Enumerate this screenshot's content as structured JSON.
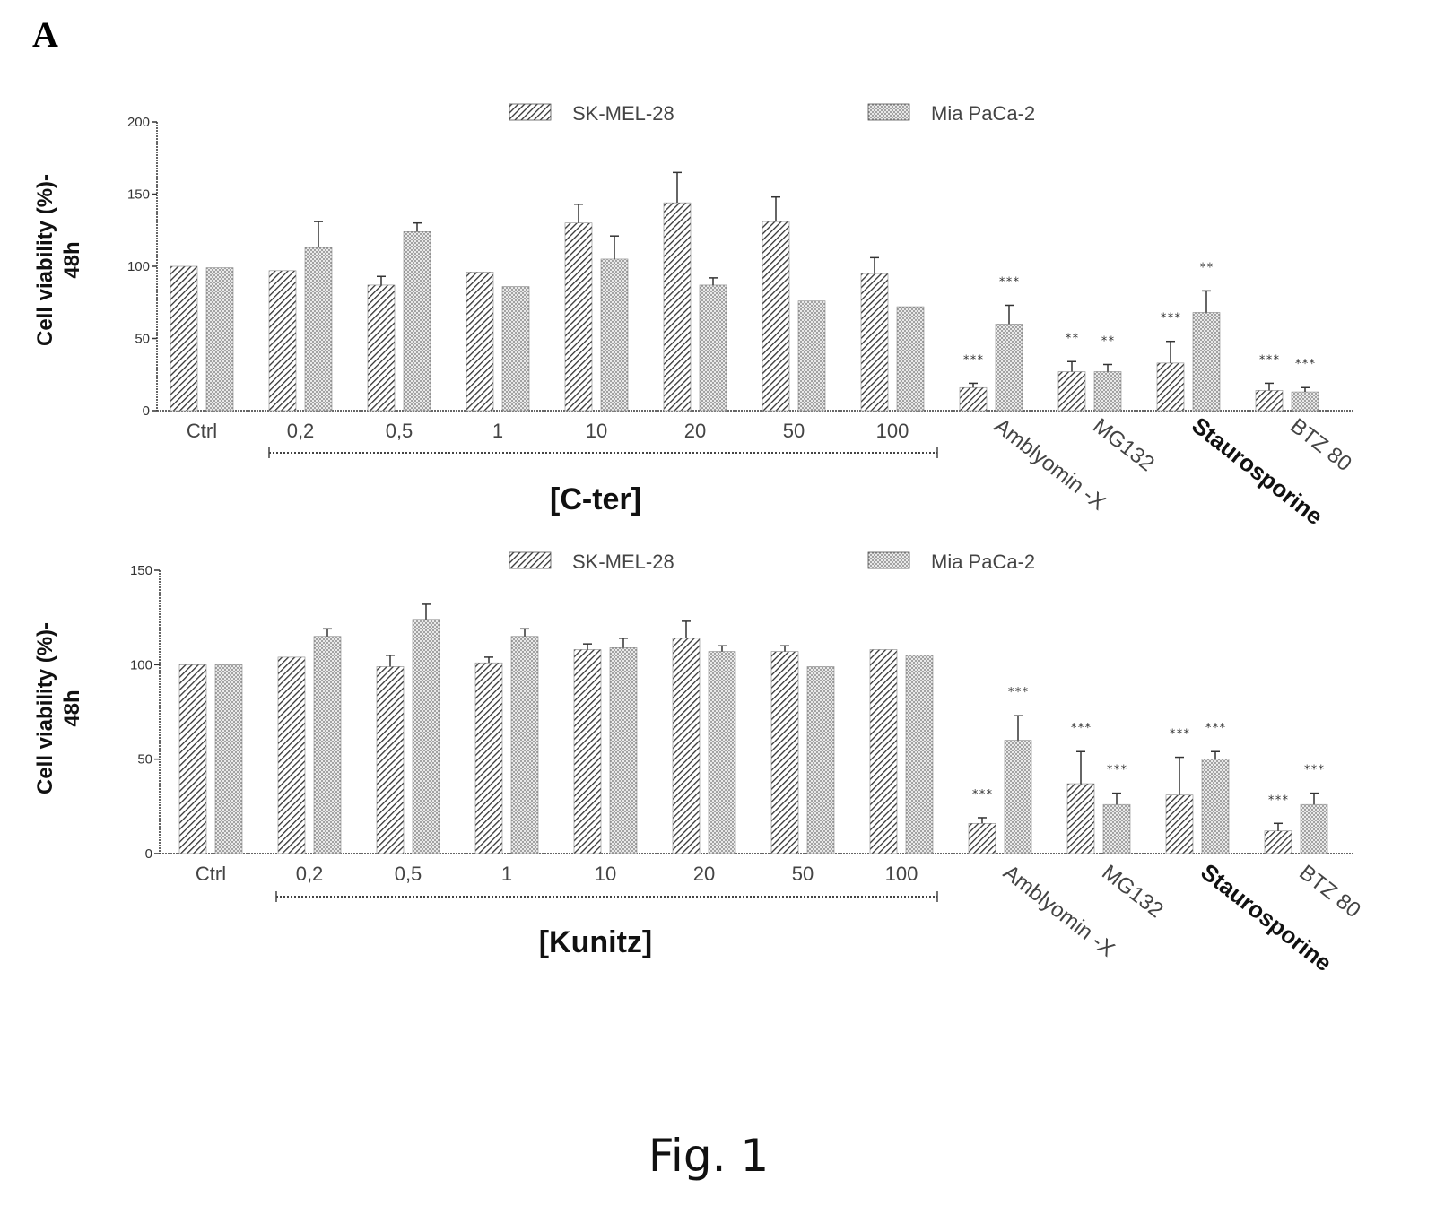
{
  "panel_letter": "A",
  "caption": "Fig. 1",
  "chart_data": [
    {
      "type": "bar",
      "ylabel": "Cell viability (%)-\n48h",
      "ylim": [
        0,
        200
      ],
      "yticks": [
        "0",
        "50",
        "100",
        "150",
        "200"
      ],
      "group_label": "[C-ter]",
      "categories": [
        "Ctrl",
        "0,2",
        "0,5",
        "1",
        "10",
        "20",
        "50",
        "100",
        "Amblyomin -X",
        "MG132",
        "Staurosporine",
        "BTZ 80"
      ],
      "bold_categories": [
        "Staurosporine"
      ],
      "legend": [
        "SK-MEL-28",
        "Mia PaCa-2"
      ],
      "series": [
        {
          "name": "SK-MEL-28",
          "values": [
            100,
            97,
            87,
            96,
            130,
            144,
            131,
            95,
            16,
            27,
            33,
            14
          ],
          "errors": [
            0,
            0,
            6,
            0,
            13,
            21,
            17,
            11,
            3,
            7,
            15,
            5
          ]
        },
        {
          "name": "Mia PaCa-2",
          "values": [
            99,
            113,
            124,
            86,
            105,
            87,
            76,
            72,
            60,
            27,
            68,
            13
          ],
          "errors": [
            0,
            18,
            6,
            0,
            16,
            5,
            0,
            0,
            13,
            5,
            15,
            3
          ]
        }
      ],
      "significance": [
        [
          "",
          "",
          "",
          "",
          "",
          "",
          "",
          "",
          "***",
          "**",
          "***",
          "***"
        ],
        [
          "",
          "",
          "",
          "",
          "",
          "",
          "",
          "",
          "***",
          "**",
          "**",
          "***"
        ]
      ]
    },
    {
      "type": "bar",
      "ylabel": "Cell viability (%)-\n48h",
      "ylim": [
        0,
        150
      ],
      "yticks": [
        "0",
        "50",
        "100",
        "150"
      ],
      "group_label": "[Kunitz]",
      "categories": [
        "Ctrl",
        "0,2",
        "0,5",
        "1",
        "10",
        "20",
        "50",
        "100",
        "Amblyomin -X",
        "MG132",
        "Staurosporine",
        "BTZ 80"
      ],
      "bold_categories": [
        "Staurosporine"
      ],
      "legend": [
        "SK-MEL-28",
        "Mia PaCa-2"
      ],
      "series": [
        {
          "name": "SK-MEL-28",
          "values": [
            100,
            104,
            99,
            101,
            108,
            114,
            107,
            108,
            16,
            37,
            31,
            12
          ],
          "errors": [
            0,
            0,
            6,
            3,
            3,
            9,
            3,
            0,
            3,
            17,
            20,
            4
          ]
        },
        {
          "name": "Mia PaCa-2",
          "values": [
            100,
            115,
            124,
            115,
            109,
            107,
            99,
            105,
            60,
            26,
            50,
            26
          ],
          "errors": [
            0,
            4,
            8,
            4,
            5,
            3,
            0,
            0,
            13,
            6,
            4,
            6
          ]
        }
      ],
      "significance": [
        [
          "",
          "",
          "",
          "",
          "",
          "",
          "",
          "",
          "***",
          "***",
          "***",
          "***"
        ],
        [
          "",
          "",
          "",
          "",
          "",
          "",
          "",
          "",
          "***",
          "***",
          "***",
          "***"
        ]
      ]
    }
  ]
}
